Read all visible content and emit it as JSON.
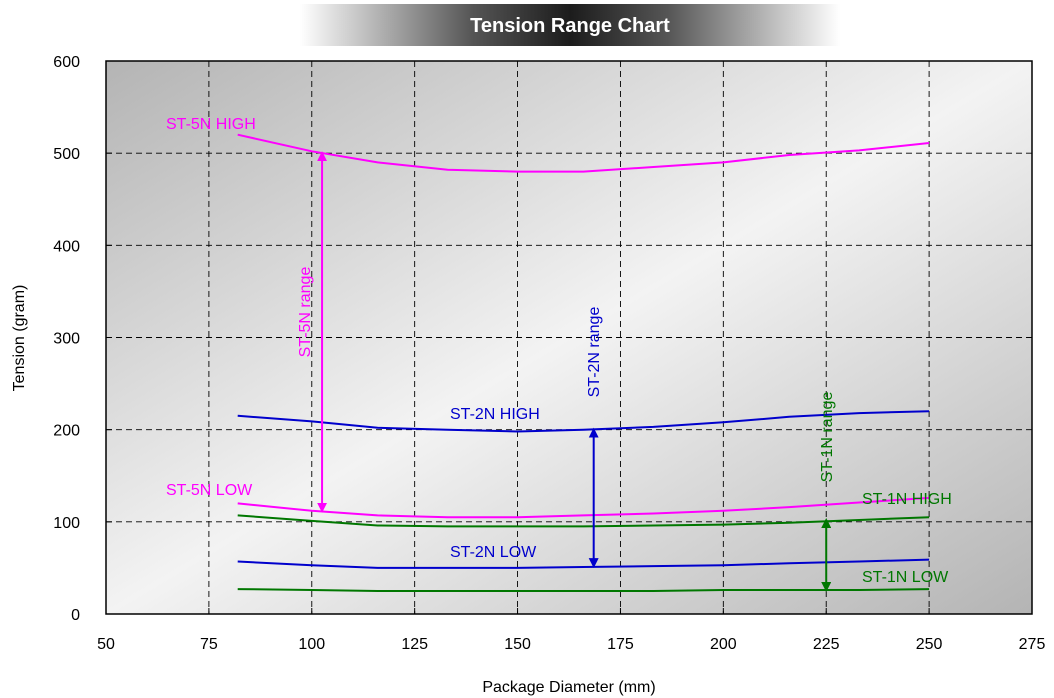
{
  "chart_data": {
    "type": "line",
    "title": "Tension Range Chart",
    "xlabel": "Package Diameter (mm)",
    "ylabel": "Tension (gram)",
    "xlim": [
      50,
      275
    ],
    "ylim": [
      0,
      600
    ],
    "xticks": [
      "50",
      "75",
      "100",
      "125",
      "150",
      "175",
      "200",
      "225",
      "250",
      "275"
    ],
    "yticks": [
      "0",
      "100",
      "200",
      "300",
      "400",
      "500",
      "600"
    ],
    "grid": true,
    "colors": {
      "st5n": "#ff00ff",
      "st2n": "#0000cc",
      "st1n": "#007700"
    },
    "series": [
      {
        "name": "ST-5N HIGH",
        "color": "#ff00ff",
        "x": [
          82,
          100,
          116,
          133,
          150,
          166,
          183,
          200,
          216,
          233,
          250
        ],
        "y": [
          520,
          502,
          490,
          482,
          480,
          480,
          485,
          490,
          498,
          503,
          511
        ]
      },
      {
        "name": "ST-5N LOW",
        "color": "#ff00ff",
        "x": [
          82,
          100,
          116,
          133,
          150,
          166,
          183,
          200,
          216,
          233,
          250
        ],
        "y": [
          120,
          112,
          107,
          105,
          105,
          107,
          109,
          112,
          116,
          121,
          126
        ]
      },
      {
        "name": "ST-2N HIGH",
        "color": "#0000cc",
        "x": [
          82,
          100,
          116,
          133,
          150,
          166,
          183,
          200,
          216,
          233,
          250
        ],
        "y": [
          215,
          209,
          202,
          200,
          198,
          200,
          203,
          208,
          214,
          218,
          220
        ]
      },
      {
        "name": "ST-2N LOW",
        "color": "#0000cc",
        "x": [
          82,
          100,
          116,
          133,
          150,
          166,
          183,
          200,
          216,
          233,
          250
        ],
        "y": [
          57,
          53,
          50,
          50,
          50,
          51,
          52,
          53,
          55,
          57,
          59
        ]
      },
      {
        "name": "ST-1N HIGH",
        "color": "#007700",
        "x": [
          82,
          100,
          116,
          133,
          150,
          166,
          183,
          200,
          216,
          233,
          250
        ],
        "y": [
          107,
          101,
          96,
          95,
          95,
          95,
          96,
          97,
          99,
          102,
          105
        ]
      },
      {
        "name": "ST-1N LOW",
        "color": "#007700",
        "x": [
          82,
          100,
          116,
          133,
          150,
          166,
          183,
          200,
          216,
          233,
          250
        ],
        "y": [
          27,
          26,
          25,
          25,
          25,
          25,
          25,
          26,
          26,
          26,
          27
        ]
      }
    ],
    "ranges": [
      {
        "name": "ST-5N range",
        "color": "#ff00ff",
        "x": 102.5,
        "y_top": 500,
        "y_bottom": 112
      },
      {
        "name": "ST-2N range",
        "color": "#0000cc",
        "x": 168.5,
        "y_top": 200,
        "y_bottom": 52
      },
      {
        "name": "ST-1N range",
        "color": "#007700",
        "x": 225,
        "y_top": 102,
        "y_bottom": 26
      }
    ]
  }
}
